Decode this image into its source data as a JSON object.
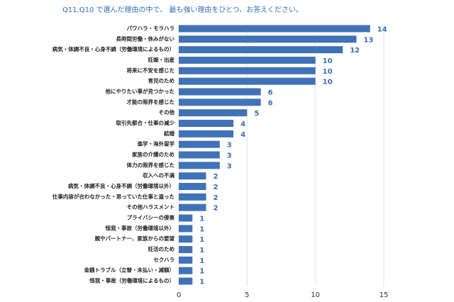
{
  "chart_data": {
    "type": "bar",
    "orientation": "horizontal",
    "title": "Q11,Q10 で選んだ理由の中で、 最も強い理由をひとつ、お答えください。",
    "categories": [
      "パワハラ・モラハラ",
      "長時間労働・休みがない",
      "病気・体調不良・心身不調（労働環境によるもの）",
      "妊娠・出産",
      "将来に不安を感じた",
      "育児のため",
      "他にやりたい事が見つかった",
      "才能の限界を感じた",
      "その他",
      "取引先都合・仕事の減少",
      "結婚",
      "進学・海外留学",
      "家族の介護のため",
      "体力の限界を感じた",
      "収入への不満",
      "病気・体調不良・心身不調（労働環境以外）",
      "仕事内容が合わなかった・思っていた仕事と違った",
      "その他ハラスメント",
      "プライバシーの侵害",
      "怪我・事故（労働環境以外）",
      "親やパートナー、家族からの要望",
      "妊活のため",
      "セクハラ",
      "金銭トラブル（立替・未払い・減額）",
      "怪我・事故（労働環境によるもの）"
    ],
    "values": [
      14,
      13,
      12,
      10,
      10,
      10,
      6,
      6,
      5,
      4,
      4,
      3,
      3,
      3,
      2,
      2,
      2,
      2,
      1,
      1,
      1,
      1,
      1,
      1,
      1
    ],
    "color": "#4072b8",
    "xlim": [
      0,
      15
    ],
    "xticks": [
      0,
      5,
      10,
      15
    ],
    "grid": true
  }
}
